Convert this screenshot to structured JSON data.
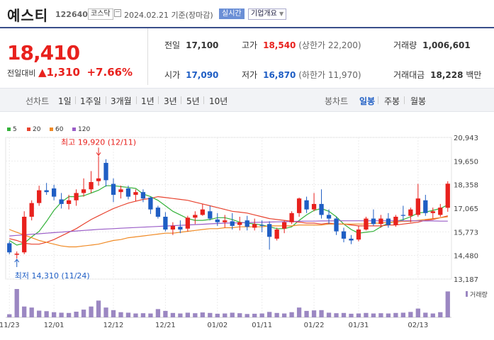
{
  "header": {
    "name": "예스티",
    "code": "122640",
    "market": "코스닥",
    "date": "2024.02.21 기준(장마감)",
    "realtime": "실시간",
    "company_info": "기업개요"
  },
  "price": {
    "current": "18,410",
    "change_label": "전일대비",
    "change_amount": "1,310",
    "change_pct": "+7.66%"
  },
  "stats": {
    "prev_label": "전일",
    "prev": "17,100",
    "high_label": "고가",
    "high": "18,540",
    "upper_limit": "(상한가 22,200)",
    "volume_label": "거래량",
    "volume": "1,006,601",
    "open_label": "시가",
    "open": "17,090",
    "low_label": "저가",
    "low": "16,870",
    "lower_limit": "(하한가 11,970)",
    "amount_label": "거래대금",
    "amount": "18,228",
    "amount_unit": "백만"
  },
  "nav": {
    "line": "선차트",
    "d1": "1일",
    "w1": "1주일",
    "m3": "3개월",
    "y1": "1년",
    "y3": "3년",
    "y5": "5년",
    "y10": "10년",
    "candle": "봉차트",
    "daily": "일봉",
    "weekly": "주봉",
    "monthly": "월봉"
  },
  "colors": {
    "up": "#e8211d",
    "down": "#1f5ec4",
    "ma5": "#34b23a",
    "ma20": "#e8432f",
    "ma60": "#f08a24",
    "ma120": "#9a5dc7",
    "volume": "#9b87c2"
  },
  "chart_data": {
    "type": "candlestick",
    "legend": [
      "5",
      "20",
      "60",
      "120"
    ],
    "y_ticks": [
      20943,
      19650,
      18358,
      17065,
      15773,
      14480,
      13187
    ],
    "ylim": [
      13187,
      20943
    ],
    "x_tick_labels": [
      "11/23",
      "12/01",
      "12/12",
      "12/21",
      "01/02",
      "01/11",
      "01/22",
      "01/31",
      "02/13"
    ],
    "x_tick_index": [
      0,
      6,
      14,
      21,
      28,
      34,
      41,
      47,
      55
    ],
    "annotation_high": "최고 19,920 (12/11)",
    "annotation_low": "최저 14,310 (11/24)",
    "volume_label": "거래량",
    "dates": [
      "11/23",
      "11/24",
      "11/27",
      "11/28",
      "11/29",
      "11/30",
      "12/01",
      "12/04",
      "12/05",
      "12/06",
      "12/07",
      "12/08",
      "12/11",
      "12/12",
      "12/13",
      "12/14",
      "12/15",
      "12/18",
      "12/19",
      "12/20",
      "12/21",
      "12/22",
      "12/26",
      "12/27",
      "12/28",
      "01/02",
      "01/03",
      "01/04",
      "01/05",
      "01/08",
      "01/09",
      "01/10",
      "01/11",
      "01/12",
      "01/15",
      "01/16",
      "01/17",
      "01/18",
      "01/19",
      "01/22",
      "01/23",
      "01/24",
      "01/25",
      "01/26",
      "01/29",
      "01/30",
      "01/31",
      "02/01",
      "02/02",
      "02/05",
      "02/06",
      "02/07",
      "02/08",
      "02/13",
      "02/14",
      "02/15",
      "02/16",
      "02/19",
      "02/20",
      "02/21"
    ],
    "ohlc": [
      [
        15150,
        15250,
        14550,
        14650
      ],
      [
        14520,
        14700,
        14310,
        14580
      ],
      [
        14650,
        16900,
        14550,
        16600
      ],
      [
        16600,
        17500,
        16400,
        17350
      ],
      [
        17350,
        18300,
        17200,
        18050
      ],
      [
        18050,
        18450,
        17800,
        17950
      ],
      [
        18150,
        18350,
        17500,
        17700
      ],
      [
        17550,
        17900,
        17050,
        17300
      ],
      [
        17300,
        17800,
        17000,
        17500
      ],
      [
        17500,
        18100,
        17200,
        17900
      ],
      [
        17900,
        18700,
        17700,
        18100
      ],
      [
        18100,
        19100,
        17900,
        18500
      ],
      [
        18550,
        19920,
        18300,
        18700
      ],
      [
        19550,
        19750,
        18250,
        18600
      ],
      [
        18400,
        18700,
        17400,
        17800
      ],
      [
        17950,
        18300,
        17600,
        18100
      ],
      [
        18150,
        18300,
        17550,
        17700
      ],
      [
        17800,
        18100,
        17450,
        17950
      ],
      [
        17950,
        18100,
        17400,
        17600
      ],
      [
        17650,
        17700,
        16750,
        17000
      ],
      [
        17100,
        17200,
        16500,
        16600
      ],
      [
        16600,
        16850,
        15800,
        15900
      ],
      [
        15900,
        16300,
        15600,
        16100
      ],
      [
        16050,
        16400,
        15700,
        15900
      ],
      [
        15950,
        16650,
        15800,
        16550
      ],
      [
        16550,
        16900,
        16200,
        16700
      ],
      [
        16700,
        17300,
        16650,
        17000
      ],
      [
        16900,
        17200,
        16400,
        16500
      ],
      [
        16450,
        16800,
        16100,
        16300
      ],
      [
        16300,
        16700,
        16000,
        16400
      ],
      [
        16350,
        16800,
        15900,
        16100
      ],
      [
        16150,
        16600,
        15850,
        16300
      ],
      [
        16400,
        16650,
        15850,
        16050
      ],
      [
        16000,
        16500,
        15850,
        16200
      ],
      [
        16150,
        16400,
        15750,
        16100
      ],
      [
        16200,
        16350,
        14800,
        15500
      ],
      [
        15400,
        16000,
        15300,
        15900
      ],
      [
        15950,
        16400,
        15700,
        16300
      ],
      [
        16300,
        16900,
        16200,
        16800
      ],
      [
        16800,
        17650,
        16600,
        17600
      ],
      [
        17500,
        17700,
        16800,
        17000
      ],
      [
        17000,
        17900,
        16900,
        17300
      ],
      [
        17300,
        18100,
        16500,
        16700
      ],
      [
        16700,
        17000,
        16200,
        16500
      ],
      [
        16500,
        16600,
        15600,
        15800
      ],
      [
        15800,
        16000,
        15200,
        15400
      ],
      [
        15400,
        15600,
        15100,
        15300
      ],
      [
        15350,
        16100,
        15250,
        15900
      ],
      [
        15900,
        16600,
        15850,
        16500
      ],
      [
        16500,
        17000,
        16100,
        16200
      ],
      [
        16200,
        16700,
        16000,
        16500
      ],
      [
        16500,
        16800,
        16000,
        16150
      ],
      [
        16150,
        16700,
        16050,
        16600
      ],
      [
        16700,
        17200,
        16400,
        16650
      ],
      [
        16650,
        17100,
        16300,
        17000
      ],
      [
        16700,
        18400,
        16600,
        17600
      ],
      [
        17500,
        17800,
        16650,
        16800
      ],
      [
        16800,
        17100,
        16500,
        16900
      ],
      [
        16700,
        17300,
        16600,
        17100
      ],
      [
        17090,
        18540,
        16870,
        18410
      ]
    ],
    "ma5": [
      15300,
      15050,
      15150,
      15500,
      15800,
      16350,
      16950,
      17400,
      17700,
      17700,
      17750,
      17900,
      18050,
      18300,
      18300,
      18250,
      18200,
      18150,
      17850,
      17700,
      17500,
      17200,
      16900,
      16700,
      16500,
      16400,
      16400,
      16450,
      16550,
      16550,
      16450,
      16300,
      16250,
      16200,
      16150,
      16050,
      15950,
      15950,
      16050,
      16400,
      16700,
      16950,
      17050,
      16900,
      16600,
      16200,
      15900,
      15700,
      15750,
      15800,
      16050,
      16250,
      16350,
      16450,
      16600,
      16800,
      16850,
      16950,
      17050,
      17250
    ],
    "ma20": [
      15400,
      15300,
      15150,
      15100,
      15100,
      15200,
      15350,
      15550,
      15750,
      15950,
      16200,
      16450,
      16650,
      16850,
      17050,
      17200,
      17350,
      17450,
      17550,
      17600,
      17700,
      17650,
      17600,
      17550,
      17500,
      17400,
      17300,
      17200,
      17100,
      17000,
      16900,
      16850,
      16800,
      16700,
      16600,
      16500,
      16450,
      16400,
      16350,
      16300,
      16250,
      16250,
      16200,
      16250,
      16200,
      16200,
      16150,
      16100,
      16100,
      16100,
      16100,
      16150,
      16150,
      16200,
      16250,
      16300,
      16400,
      16450,
      16550,
      16650
    ],
    "ma60": [
      15900,
      15750,
      15600,
      15450,
      15300,
      15200,
      15100,
      15000,
      14950,
      14950,
      15000,
      15050,
      15100,
      15200,
      15300,
      15350,
      15450,
      15500,
      15550,
      15600,
      15650,
      15700,
      15700,
      15750,
      15800,
      15850,
      15900,
      15950,
      15950,
      16000,
      16000,
      16050,
      16050,
      16050,
      16050,
      16100,
      16100,
      16100,
      16100,
      16150,
      16150,
      16150,
      16150,
      16200,
      16200,
      16200,
      16200,
      16200,
      16200,
      16250,
      16250,
      16300,
      16300,
      16350,
      16350,
      16400,
      16450,
      16500,
      16550,
      16600
    ],
    "ma120": [
      15550,
      15580,
      15610,
      15640,
      15670,
      15700,
      15730,
      15760,
      15790,
      15820,
      15850,
      15880,
      15910,
      15930,
      15950,
      15970,
      15990,
      16010,
      16030,
      16050,
      16070,
      16090,
      16110,
      16130,
      16150,
      16170,
      16190,
      16210,
      16230,
      16250,
      16260,
      16270,
      16280,
      16290,
      16300,
      16310,
      16320,
      16330,
      16340,
      16350,
      16360,
      16360,
      16370,
      16370,
      16380,
      16380,
      16380,
      16380,
      16380,
      16380,
      16380,
      16380,
      16380,
      16380,
      16380,
      16380,
      16370,
      16370,
      16360,
      16360
    ],
    "volume": [
      120,
      1100,
      420,
      380,
      260,
      240,
      200,
      180,
      170,
      220,
      300,
      420,
      650,
      380,
      280,
      200,
      180,
      150,
      160,
      150,
      320,
      250,
      170,
      150,
      180,
      160,
      190,
      170,
      140,
      150,
      180,
      160,
      130,
      140,
      150,
      210,
      170,
      150,
      200,
      380,
      250,
      270,
      280,
      180,
      160,
      170,
      140,
      150,
      170,
      150,
      160,
      150,
      170,
      180,
      210,
      340,
      180,
      150,
      200,
      1006
    ]
  }
}
